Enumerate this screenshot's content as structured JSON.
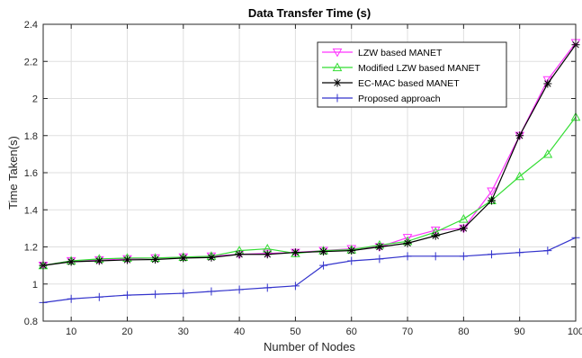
{
  "chart_data": {
    "type": "line",
    "title": "Data Transfer Time (s)",
    "xlabel": "Number of Nodes",
    "ylabel": "Time Taken(s)",
    "xlim": [
      5,
      100
    ],
    "ylim": [
      0.8,
      2.4
    ],
    "xticks": [
      10,
      20,
      30,
      40,
      50,
      60,
      70,
      80,
      90,
      100
    ],
    "yticks": [
      0.8,
      1,
      1.2,
      1.4,
      1.6,
      1.8,
      2,
      2.2,
      2.4
    ],
    "grid": true,
    "legend_position": "top-right",
    "x": [
      5,
      10,
      15,
      20,
      25,
      30,
      35,
      40,
      45,
      50,
      55,
      60,
      65,
      70,
      75,
      80,
      85,
      90,
      95,
      100
    ],
    "series": [
      {
        "name": "LZW based MANET",
        "color": "#ff33ff",
        "marker": "triangle-down",
        "values": [
          1.1,
          1.125,
          1.13,
          1.135,
          1.14,
          1.145,
          1.15,
          1.16,
          1.165,
          1.17,
          1.18,
          1.19,
          1.2,
          1.25,
          1.29,
          1.3,
          1.5,
          1.8,
          2.1,
          2.3
        ]
      },
      {
        "name": "Modified LZW based MANET",
        "color": "#33dd33",
        "marker": "triangle-up",
        "values": [
          1.1,
          1.125,
          1.135,
          1.14,
          1.14,
          1.145,
          1.15,
          1.18,
          1.19,
          1.165,
          1.18,
          1.185,
          1.21,
          1.23,
          1.28,
          1.35,
          1.45,
          1.58,
          1.7,
          1.9
        ]
      },
      {
        "name": "EC-MAC based MANET",
        "color": "#000000",
        "marker": "asterisk",
        "values": [
          1.1,
          1.12,
          1.125,
          1.13,
          1.132,
          1.14,
          1.143,
          1.16,
          1.16,
          1.17,
          1.175,
          1.18,
          1.2,
          1.22,
          1.26,
          1.3,
          1.45,
          1.8,
          2.08,
          2.29
        ]
      },
      {
        "name": "Proposed approach",
        "color": "#3333cc",
        "marker": "plus",
        "values": [
          0.9,
          0.92,
          0.93,
          0.94,
          0.945,
          0.95,
          0.96,
          0.97,
          0.98,
          0.99,
          1.1,
          1.125,
          1.135,
          1.15,
          1.15,
          1.15,
          1.16,
          1.17,
          1.18,
          1.25
        ]
      }
    ]
  }
}
